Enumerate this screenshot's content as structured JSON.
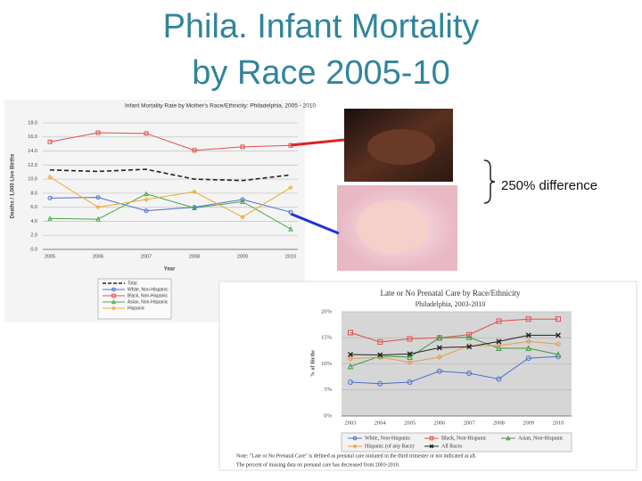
{
  "title": "Phila. Infant Mortality by Race 2005-10",
  "annotation": "250% difference",
  "chart_data": [
    {
      "type": "line",
      "title": "Infant Mortality Rate by Mother's Race/Ethnicity: Philadelphia, 2005 - 2010",
      "xlabel": "Year",
      "ylabel": "Deaths / 1,000 Live Births",
      "categories": [
        "2005",
        "2006",
        "2007",
        "2008",
        "2009",
        "2010"
      ],
      "ylim": [
        0,
        18
      ],
      "yticks": [
        {
          "value": 0,
          "label": "0.0"
        },
        {
          "value": 2,
          "label": "2.0"
        },
        {
          "value": 4,
          "label": "4.0"
        },
        {
          "value": 6,
          "label": "6.0"
        },
        {
          "value": 8,
          "label": "8.0"
        },
        {
          "value": 10,
          "label": "10.0"
        },
        {
          "value": 12,
          "label": "12.0"
        },
        {
          "value": 14,
          "label": "14.0"
        },
        {
          "value": 16,
          "label": "16.0"
        },
        {
          "value": 18,
          "label": "18.0"
        }
      ],
      "grid": true,
      "series": [
        {
          "name": "Total",
          "color": "#222222",
          "dashed": true,
          "marker": "none",
          "values": [
            11.3,
            11.1,
            11.4,
            10.0,
            9.8,
            10.6
          ]
        },
        {
          "name": "White, Non-Hispanic",
          "color": "#4a6fd0",
          "marker": "circle",
          "values": [
            7.3,
            7.4,
            5.5,
            6.0,
            7.1,
            5.3
          ]
        },
        {
          "name": "Black, Non-Hispanic",
          "color": "#e0504a",
          "marker": "square",
          "values": [
            15.3,
            16.6,
            16.5,
            14.1,
            14.6,
            14.8
          ]
        },
        {
          "name": "Asian, Non-Hispanic",
          "color": "#4aa54a",
          "marker": "triangle",
          "values": [
            4.4,
            4.3,
            7.9,
            5.9,
            6.8,
            2.9
          ]
        },
        {
          "name": "Hispanic",
          "color": "#f0a830",
          "marker": "diamond",
          "values": [
            10.3,
            6.0,
            7.1,
            8.2,
            4.6,
            8.8
          ]
        }
      ]
    },
    {
      "type": "line",
      "title": "Late or No Prenatal Care by Race/Ethnicity",
      "subtitle": "Philadelphia, 2003-2010",
      "ylabel": "% of Births",
      "categories": [
        "2003",
        "2004",
        "2005",
        "2006",
        "2007",
        "2008",
        "2009",
        "2010"
      ],
      "ylim": [
        0,
        20
      ],
      "yticks": [
        {
          "value": 0,
          "label": "0%"
        },
        {
          "value": 5,
          "label": "5%"
        },
        {
          "value": 10,
          "label": "10%"
        },
        {
          "value": 15,
          "label": "15%"
        },
        {
          "value": 20,
          "label": "20%"
        }
      ],
      "grid": true,
      "series": [
        {
          "name": "White, Non-Hispanic",
          "color": "#4a6fd0",
          "marker": "circle",
          "values": [
            6.5,
            6.2,
            6.5,
            8.6,
            8.2,
            7.1,
            11.1,
            11.4
          ]
        },
        {
          "name": "Black, Non-Hispanic",
          "color": "#e0504a",
          "marker": "square",
          "values": [
            16.0,
            14.2,
            14.8,
            15.0,
            15.6,
            18.2,
            18.6,
            18.6
          ]
        },
        {
          "name": "Asian, Non-Hispanic",
          "color": "#3a9a3a",
          "marker": "triangle",
          "values": [
            9.5,
            11.5,
            11.3,
            15.0,
            15.1,
            13.0,
            13.0,
            11.8
          ]
        },
        {
          "name": "Hispanic (of any Race)",
          "color": "#e89a50",
          "marker": "diamond",
          "values": [
            11.0,
            11.3,
            10.3,
            11.3,
            13.5,
            13.5,
            14.3,
            13.8
          ]
        },
        {
          "name": "All Races",
          "color": "#222222",
          "marker": "x",
          "values": [
            11.8,
            11.7,
            11.9,
            13.1,
            13.3,
            14.3,
            15.5,
            15.5
          ]
        }
      ],
      "notes": [
        "Note: \"Late or No Prenatal Care\" is defined as prenatal care initiated in the third trimester or not indicated at all.",
        "The percent of missing data on prenatal care has decreased from 2003-2010."
      ]
    }
  ]
}
